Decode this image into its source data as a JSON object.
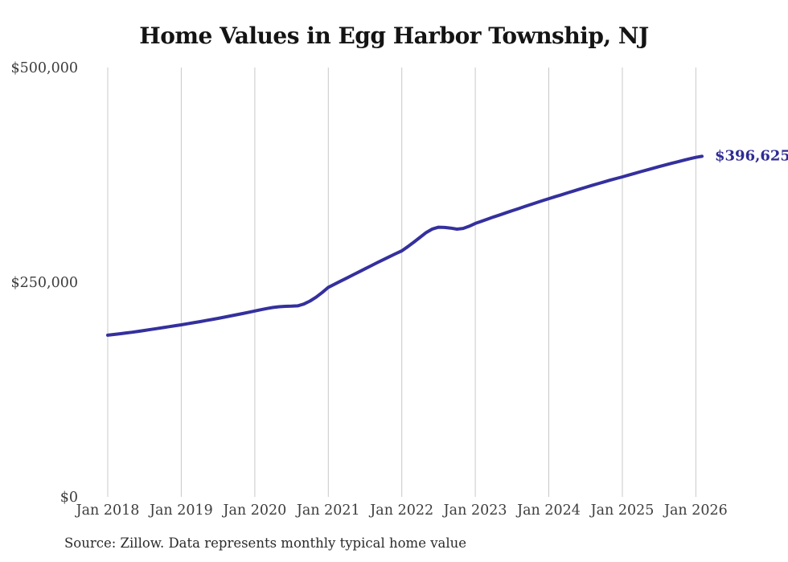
{
  "page": {
    "source_note": "Source: Zillow. Data represents monthly typical home value"
  },
  "colors": {
    "background": "#ffffff",
    "line": "#34309d",
    "grid": "#c8c8c8",
    "tick_text": "#3d3d3d",
    "title_text": "#141414",
    "source_text": "#2b2b2b",
    "end_label_text": "#2e2b94"
  },
  "chart_data": {
    "type": "line",
    "title": "Home Values in Egg Harbor Township, NJ",
    "xlabel": "",
    "ylabel": "",
    "ylim": [
      0,
      500000
    ],
    "grid": "vertical-only",
    "legend": "none",
    "x_tick_labels": [
      "Jan 2018",
      "Jan 2019",
      "Jan 2020",
      "Jan 2021",
      "Jan 2022",
      "Jan 2023",
      "Jan 2024",
      "Jan 2025",
      "Jan 2026"
    ],
    "y_ticks": [
      {
        "label": "$0",
        "value": 0
      },
      {
        "label": "$250,000",
        "value": 250000
      },
      {
        "label": "$500,000",
        "value": 500000
      }
    ],
    "months_per_tick": 12,
    "end_label": "$396,625",
    "final_value": 396625,
    "series": [
      {
        "name": "Typical home value",
        "start": "Jan 2018",
        "frequency": "monthly",
        "values": [
          188300,
          189100,
          190000,
          190900,
          191800,
          192800,
          193800,
          194900,
          196000,
          197100,
          198200,
          199300,
          200400,
          201600,
          202800,
          204000,
          205300,
          206600,
          207900,
          209300,
          210700,
          212100,
          213500,
          215000,
          216500,
          218000,
          219400,
          220600,
          221400,
          221900,
          222100,
          222500,
          224500,
          228000,
          232500,
          238000,
          244000,
          247600,
          251200,
          254800,
          258400,
          262000,
          265600,
          269200,
          272800,
          276300,
          279800,
          283200,
          286500,
          291500,
          296800,
          302400,
          308000,
          312000,
          314000,
          313800,
          313000,
          311800,
          312600,
          315200,
          318400,
          321000,
          323500,
          326000,
          328400,
          330800,
          333200,
          335600,
          338000,
          340400,
          342700,
          345000,
          347300,
          349500,
          351700,
          353900,
          356100,
          358300,
          360500,
          362600,
          364700,
          366800,
          368800,
          370800,
          372700,
          374700,
          376700,
          378700,
          380700,
          382700,
          384600,
          386500,
          388400,
          390200,
          392000,
          393800,
          395400,
          396625
        ]
      }
    ]
  }
}
